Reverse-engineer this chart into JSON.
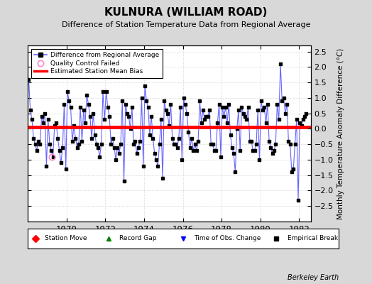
{
  "title": "KULNURA (WILLIAM ROAD)",
  "subtitle": "Difference of Station Temperature Data from Regional Average",
  "ylabel_right": "Monthly Temperature Anomaly Difference (°C)",
  "ylim": [
    -3,
    2.7
  ],
  "yticks": [
    -2.5,
    -2,
    -1.5,
    -1,
    -0.5,
    0,
    0.5,
    1,
    1.5,
    2,
    2.5
  ],
  "xlim": [
    1968.0,
    1982.6
  ],
  "xticks": [
    1970,
    1972,
    1974,
    1976,
    1978,
    1980,
    1982
  ],
  "bias_level": 0.05,
  "background_color": "#d8d8d8",
  "plot_bg_color": "#ffffff",
  "line_color": "#6666ff",
  "marker_color": "#000000",
  "bias_color": "#ff0000",
  "qc_fail_x": [
    1969.25
  ],
  "qc_fail_y": [
    -0.9
  ],
  "footer_text": "Berkeley Earth",
  "times": [
    1968.042,
    1968.125,
    1968.208,
    1968.292,
    1968.375,
    1968.458,
    1968.542,
    1968.625,
    1968.708,
    1968.792,
    1968.875,
    1968.958,
    1969.042,
    1969.125,
    1969.208,
    1969.292,
    1969.375,
    1969.458,
    1969.542,
    1969.625,
    1969.708,
    1969.792,
    1969.875,
    1969.958,
    1970.042,
    1970.125,
    1970.208,
    1970.292,
    1970.375,
    1970.458,
    1970.542,
    1970.625,
    1970.708,
    1970.792,
    1970.875,
    1970.958,
    1971.042,
    1971.125,
    1971.208,
    1971.292,
    1971.375,
    1971.458,
    1971.542,
    1971.625,
    1971.708,
    1971.792,
    1971.875,
    1971.958,
    1972.042,
    1972.125,
    1972.208,
    1972.292,
    1972.375,
    1972.458,
    1972.542,
    1972.625,
    1972.708,
    1972.792,
    1972.875,
    1972.958,
    1973.042,
    1973.125,
    1973.208,
    1973.292,
    1973.375,
    1973.458,
    1973.542,
    1973.625,
    1973.708,
    1973.792,
    1973.875,
    1973.958,
    1974.042,
    1974.125,
    1974.208,
    1974.292,
    1974.375,
    1974.458,
    1974.542,
    1974.625,
    1974.708,
    1974.792,
    1974.875,
    1974.958,
    1975.042,
    1975.125,
    1975.208,
    1975.292,
    1975.375,
    1975.458,
    1975.542,
    1975.625,
    1975.708,
    1975.792,
    1975.875,
    1975.958,
    1976.042,
    1976.125,
    1976.208,
    1976.292,
    1976.375,
    1976.458,
    1976.542,
    1976.625,
    1976.708,
    1976.792,
    1976.875,
    1976.958,
    1977.042,
    1977.125,
    1977.208,
    1977.292,
    1977.375,
    1977.458,
    1977.542,
    1977.625,
    1977.708,
    1977.792,
    1977.875,
    1977.958,
    1978.042,
    1978.125,
    1978.208,
    1978.292,
    1978.375,
    1978.458,
    1978.542,
    1978.625,
    1978.708,
    1978.792,
    1978.875,
    1978.958,
    1979.042,
    1979.125,
    1979.208,
    1979.292,
    1979.375,
    1979.458,
    1979.542,
    1979.625,
    1979.708,
    1979.792,
    1979.875,
    1979.958,
    1980.042,
    1980.125,
    1980.208,
    1980.292,
    1980.375,
    1980.458,
    1980.542,
    1980.625,
    1980.708,
    1980.792,
    1980.875,
    1980.958,
    1981.042,
    1981.125,
    1981.208,
    1981.292,
    1981.375,
    1981.458,
    1981.542,
    1981.625,
    1981.708,
    1981.792,
    1981.875,
    1981.958,
    1982.042,
    1982.125,
    1982.208,
    1982.292,
    1982.375
  ],
  "values": [
    1.6,
    0.6,
    0.3,
    -0.3,
    -0.5,
    -0.7,
    -0.4,
    -0.5,
    0.4,
    0.2,
    0.5,
    -1.2,
    0.3,
    -0.5,
    -0.7,
    -0.9,
    0.1,
    0.2,
    -0.3,
    -0.7,
    -1.1,
    -0.6,
    0.8,
    -1.3,
    1.2,
    0.9,
    0.7,
    -0.4,
    0.1,
    -0.3,
    -0.6,
    -0.5,
    0.7,
    -0.4,
    0.6,
    0.2,
    1.1,
    0.8,
    0.4,
    -0.3,
    0.5,
    -0.2,
    -0.5,
    -0.6,
    -0.9,
    -0.5,
    1.2,
    0.3,
    1.2,
    0.7,
    0.4,
    -0.5,
    -0.3,
    -0.6,
    -1.0,
    -0.6,
    -0.8,
    -0.5,
    0.9,
    -1.7,
    0.8,
    0.5,
    0.4,
    0.0,
    0.7,
    -0.5,
    -0.4,
    -0.8,
    -0.6,
    -0.4,
    1.0,
    -1.2,
    1.4,
    0.9,
    0.7,
    -0.2,
    0.4,
    -0.3,
    -0.8,
    -1.0,
    -1.2,
    -0.5,
    0.3,
    -1.6,
    0.9,
    0.6,
    0.5,
    0.1,
    0.8,
    -0.3,
    -0.5,
    -0.5,
    -0.6,
    -0.3,
    0.7,
    -1.0,
    1.0,
    0.8,
    0.5,
    -0.1,
    -0.6,
    -0.3,
    -0.7,
    -0.5,
    -0.7,
    -0.4,
    0.9,
    0.2,
    0.6,
    0.3,
    0.4,
    0.4,
    0.6,
    -0.5,
    -0.5,
    -0.7,
    -0.7,
    0.2,
    0.8,
    -0.9,
    0.7,
    0.4,
    0.7,
    0.2,
    0.8,
    -0.2,
    -0.6,
    -0.8,
    -1.4,
    0.0,
    0.6,
    -0.7,
    0.7,
    0.5,
    0.4,
    0.3,
    0.7,
    -0.4,
    -0.4,
    -0.7,
    -0.7,
    -0.5,
    0.6,
    -1.0,
    0.9,
    0.6,
    0.7,
    0.2,
    0.8,
    -0.4,
    -0.6,
    -0.8,
    -0.7,
    -0.5,
    0.8,
    0.3,
    2.1,
    0.9,
    1.0,
    0.5,
    0.8,
    -0.4,
    -0.5,
    -1.4,
    -1.3,
    -0.5,
    0.3,
    -2.3,
    0.2,
    0.1,
    0.3,
    0.4,
    0.5
  ]
}
